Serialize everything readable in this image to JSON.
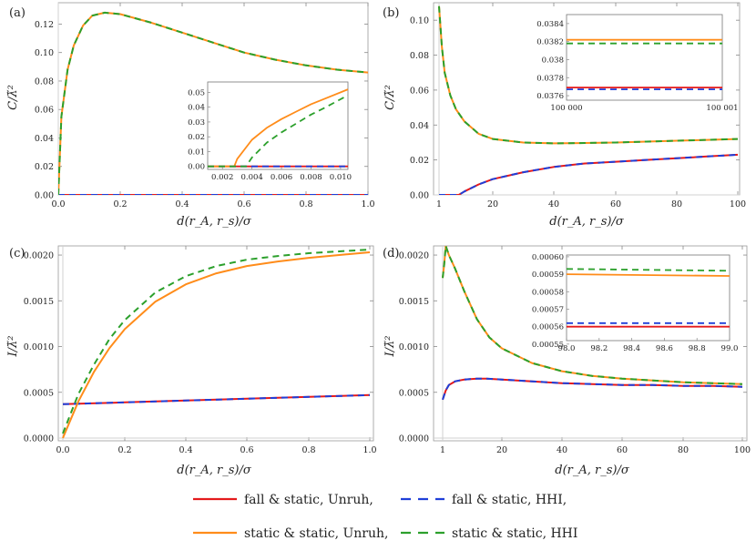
{
  "chart_data": [
    {
      "panel": "(a)",
      "type": "line",
      "xlabel": "d(r_A, r_s)/σ",
      "ylabel": "C/λ̃²",
      "xlim": [
        0,
        1.0
      ],
      "ylim": [
        0,
        0.135
      ],
      "xticks": [
        "0.0",
        "0.2",
        "0.4",
        "0.6",
        "0.8",
        "1.0"
      ],
      "yticks": [
        "0.00",
        "0.02",
        "0.04",
        "0.06",
        "0.08",
        "0.10",
        "0.12"
      ],
      "series": [
        {
          "name": "fall & static, Unruh",
          "color": "#e41a1c",
          "dash": false,
          "x": [
            0,
            0.2,
            0.4,
            0.6,
            0.8,
            1.0
          ],
          "values": [
            0,
            0,
            0,
            0,
            0,
            0
          ]
        },
        {
          "name": "fall & static, HHI",
          "color": "#1f3fd8",
          "dash": true,
          "x": [
            0,
            0.2,
            0.4,
            0.6,
            0.8,
            1.0
          ],
          "values": [
            0,
            0,
            0,
            0,
            0,
            0
          ]
        },
        {
          "name": "static & static, Unruh",
          "color": "#ff8c1a",
          "dash": false,
          "x": [
            0,
            0.01,
            0.03,
            0.05,
            0.08,
            0.11,
            0.15,
            0.2,
            0.3,
            0.4,
            0.5,
            0.6,
            0.7,
            0.8,
            0.9,
            1.0
          ],
          "values": [
            0,
            0.055,
            0.088,
            0.105,
            0.119,
            0.126,
            0.128,
            0.127,
            0.121,
            0.114,
            0.107,
            0.1,
            0.095,
            0.091,
            0.088,
            0.086
          ]
        },
        {
          "name": "static & static, HHI",
          "color": "#2ca02c",
          "dash": true,
          "x": [
            0,
            0.01,
            0.03,
            0.05,
            0.08,
            0.11,
            0.15,
            0.2,
            0.3,
            0.4,
            0.5,
            0.6,
            0.7,
            0.8,
            0.9,
            1.0
          ],
          "values": [
            0,
            0.055,
            0.088,
            0.105,
            0.119,
            0.126,
            0.128,
            0.127,
            0.121,
            0.114,
            0.107,
            0.1,
            0.095,
            0.091,
            0.088,
            0.086
          ]
        }
      ],
      "inset": {
        "xlim": [
          0.001,
          0.0105
        ],
        "ylim": [
          -0.002,
          0.057
        ],
        "xticks": [
          "0.002",
          "0.004",
          "0.006",
          "0.008",
          "0.010"
        ],
        "yticks": [
          "0.00",
          "0.01",
          "0.02",
          "0.03",
          "0.04",
          "0.05"
        ],
        "series": [
          {
            "name": "fall & static, Unruh",
            "x": [
              0.001,
              0.0105
            ],
            "values": [
              0,
              0
            ]
          },
          {
            "name": "fall & static, HHI",
            "x": [
              0.001,
              0.0105
            ],
            "values": [
              0,
              0
            ]
          },
          {
            "name": "static & static, Unruh",
            "x": [
              0.001,
              0.0028,
              0.0028,
              0.003,
              0.004,
              0.005,
              0.006,
              0.007,
              0.008,
              0.009,
              0.0105
            ],
            "values": [
              0,
              0,
              0,
              0.005,
              0.018,
              0.026,
              0.032,
              0.037,
              0.042,
              0.046,
              0.052
            ]
          },
          {
            "name": "static & static, HHI",
            "x": [
              0.001,
              0.0036,
              0.0036,
              0.004,
              0.005,
              0.006,
              0.007,
              0.008,
              0.009,
              0.0105
            ],
            "values": [
              0,
              0,
              0,
              0.006,
              0.016,
              0.023,
              0.029,
              0.035,
              0.04,
              0.048
            ]
          }
        ]
      }
    },
    {
      "panel": "(b)",
      "type": "line",
      "xlabel": "d(r_A, r_s)/σ",
      "ylabel": "C/λ̃²",
      "xlim": [
        0,
        100
      ],
      "ylim": [
        0,
        0.11
      ],
      "xticks": [
        "1",
        "20",
        "40",
        "60",
        "80",
        "100"
      ],
      "yticks": [
        "0.00",
        "0.02",
        "0.04",
        "0.06",
        "0.08",
        "0.10"
      ],
      "series": [
        {
          "name": "fall & static, Unruh",
          "color": "#e41a1c",
          "dash": false,
          "x": [
            1,
            5,
            8,
            10,
            15,
            20,
            30,
            40,
            50,
            60,
            70,
            80,
            90,
            100
          ],
          "values": [
            0,
            0,
            0,
            0.002,
            0.006,
            0.009,
            0.013,
            0.016,
            0.018,
            0.019,
            0.02,
            0.021,
            0.022,
            0.023
          ]
        },
        {
          "name": "fall & static, HHI",
          "color": "#1f3fd8",
          "dash": true,
          "x": [
            1,
            5,
            8,
            10,
            15,
            20,
            30,
            40,
            50,
            60,
            70,
            80,
            90,
            100
          ],
          "values": [
            0,
            0,
            0,
            0.002,
            0.006,
            0.009,
            0.013,
            0.016,
            0.018,
            0.019,
            0.02,
            0.021,
            0.022,
            0.023
          ]
        },
        {
          "name": "static & static, Unruh",
          "color": "#ff8c1a",
          "dash": false,
          "x": [
            1,
            2,
            3,
            5,
            7,
            10,
            15,
            20,
            30,
            40,
            50,
            60,
            70,
            80,
            90,
            100
          ],
          "values": [
            0.108,
            0.085,
            0.07,
            0.057,
            0.049,
            0.042,
            0.035,
            0.032,
            0.03,
            0.0295,
            0.0297,
            0.03,
            0.0305,
            0.031,
            0.0315,
            0.032
          ]
        },
        {
          "name": "static & static, HHI",
          "color": "#2ca02c",
          "dash": true,
          "x": [
            1,
            2,
            3,
            5,
            7,
            10,
            15,
            20,
            30,
            40,
            50,
            60,
            70,
            80,
            90,
            100
          ],
          "values": [
            0.108,
            0.085,
            0.07,
            0.057,
            0.049,
            0.042,
            0.035,
            0.032,
            0.03,
            0.0295,
            0.0297,
            0.03,
            0.0305,
            0.031,
            0.0315,
            0.032
          ]
        }
      ],
      "inset": {
        "xlim": [
          100000,
          100001
        ],
        "ylim": [
          0.03755,
          0.0385
        ],
        "xticks": [
          "100 000",
          "100 001"
        ],
        "yticks": [
          "0.0376",
          "0.0378",
          "0.038",
          "0.0382",
          "0.0384"
        ],
        "series": [
          {
            "name": "fall & static, Unruh",
            "x": [
              100000,
              100001
            ],
            "values": [
              0.03769,
              0.03769
            ]
          },
          {
            "name": "fall & static, HHI",
            "x": [
              100000,
              100001
            ],
            "values": [
              0.03767,
              0.03767
            ]
          },
          {
            "name": "static & static, Unruh",
            "x": [
              100000,
              100001
            ],
            "values": [
              0.03822,
              0.03822
            ]
          },
          {
            "name": "static & static, HHI",
            "x": [
              100000,
              100001
            ],
            "values": [
              0.03818,
              0.03818
            ]
          }
        ]
      }
    },
    {
      "panel": "(c)",
      "type": "line",
      "xlabel": "d(r_A, r_s)/σ",
      "ylabel": "I/λ̃²",
      "xlim": [
        0,
        1.0
      ],
      "ylim": [
        -3e-05,
        0.0021
      ],
      "xticks": [
        "0.0",
        "0.2",
        "0.4",
        "0.6",
        "0.8",
        "1.0"
      ],
      "yticks": [
        "0.0000",
        "0.0005",
        "0.0010",
        "0.0015",
        "0.0020"
      ],
      "series": [
        {
          "name": "fall & static, Unruh",
          "color": "#e41a1c",
          "dash": false,
          "x": [
            0,
            0.2,
            0.4,
            0.6,
            0.8,
            1.0
          ],
          "values": [
            0.00037,
            0.00039,
            0.00041,
            0.00043,
            0.00045,
            0.00047
          ]
        },
        {
          "name": "fall & static, HHI",
          "color": "#1f3fd8",
          "dash": true,
          "x": [
            0,
            0.2,
            0.4,
            0.6,
            0.8,
            1.0
          ],
          "values": [
            0.00037,
            0.00039,
            0.00041,
            0.00043,
            0.00045,
            0.00047
          ]
        },
        {
          "name": "static & static, Unruh",
          "color": "#ff8c1a",
          "dash": false,
          "x": [
            0,
            0.05,
            0.1,
            0.15,
            0.2,
            0.3,
            0.4,
            0.5,
            0.6,
            0.7,
            0.8,
            0.9,
            1.0
          ],
          "values": [
            0,
            0.0004,
            0.00072,
            0.00098,
            0.00119,
            0.00149,
            0.00168,
            0.0018,
            0.00188,
            0.00193,
            0.00197,
            0.002,
            0.00203
          ]
        },
        {
          "name": "static & static, HHI",
          "color": "#2ca02c",
          "dash": true,
          "x": [
            0,
            0.05,
            0.1,
            0.15,
            0.2,
            0.3,
            0.4,
            0.5,
            0.6,
            0.7,
            0.8,
            0.9,
            1.0
          ],
          "values": [
            5e-05,
            0.00048,
            0.0008,
            0.00108,
            0.00129,
            0.00159,
            0.00177,
            0.00188,
            0.00195,
            0.00199,
            0.00202,
            0.00204,
            0.00206
          ]
        }
      ]
    },
    {
      "panel": "(d)",
      "type": "line",
      "xlabel": "d(r_A, r_s)/σ",
      "ylabel": "I/λ̃²",
      "xlim": [
        0,
        100
      ],
      "ylim": [
        -3e-05,
        0.0021
      ],
      "xticks": [
        "1",
        "20",
        "40",
        "60",
        "80",
        "100"
      ],
      "yticks": [
        "0.0000",
        "0.0005",
        "0.0010",
        "0.0015",
        "0.0020"
      ],
      "series": [
        {
          "name": "fall & static, Unruh",
          "color": "#e41a1c",
          "dash": false,
          "x": [
            1,
            2,
            3,
            5,
            8,
            12,
            15,
            20,
            30,
            40,
            50,
            60,
            70,
            80,
            90,
            100
          ],
          "values": [
            0.00042,
            0.00052,
            0.00058,
            0.00062,
            0.00064,
            0.00065,
            0.00065,
            0.00064,
            0.00062,
            0.0006,
            0.00059,
            0.00058,
            0.00058,
            0.00057,
            0.00057,
            0.00056
          ]
        },
        {
          "name": "fall & static, HHI",
          "color": "#1f3fd8",
          "dash": true,
          "x": [
            1,
            2,
            3,
            5,
            8,
            12,
            15,
            20,
            30,
            40,
            50,
            60,
            70,
            80,
            90,
            100
          ],
          "values": [
            0.00042,
            0.00052,
            0.00058,
            0.00062,
            0.00064,
            0.00065,
            0.00065,
            0.00064,
            0.00062,
            0.0006,
            0.00059,
            0.00058,
            0.00058,
            0.00057,
            0.00057,
            0.00056
          ]
        },
        {
          "name": "static & static, Unruh",
          "color": "#ff8c1a",
          "dash": false,
          "x": [
            1,
            1.5,
            2,
            3,
            5,
            8,
            12,
            16,
            20,
            30,
            40,
            50,
            60,
            70,
            80,
            90,
            100
          ],
          "values": [
            0.00175,
            0.0019,
            0.0021,
            0.002,
            0.00185,
            0.0016,
            0.0013,
            0.0011,
            0.00098,
            0.00082,
            0.00073,
            0.00068,
            0.00065,
            0.00063,
            0.00061,
            0.0006,
            0.00059
          ]
        },
        {
          "name": "static & static, HHI",
          "color": "#2ca02c",
          "dash": true,
          "x": [
            1,
            1.5,
            2,
            3,
            5,
            8,
            12,
            16,
            20,
            30,
            40,
            50,
            60,
            70,
            80,
            90,
            100
          ],
          "values": [
            0.00175,
            0.0019,
            0.0021,
            0.002,
            0.00185,
            0.0016,
            0.0013,
            0.0011,
            0.00098,
            0.00082,
            0.00073,
            0.00068,
            0.00065,
            0.00063,
            0.00061,
            0.0006,
            0.00059
          ]
        }
      ],
      "inset": {
        "xlim": [
          98.0,
          99.0
        ],
        "ylim": [
          0.000552,
          0.000601
        ],
        "xticks": [
          "98.0",
          "98.2",
          "98.4",
          "98.6",
          "98.8",
          "99.0"
        ],
        "yticks": [
          "0.00055",
          "0.00056",
          "0.00057",
          "0.00058",
          "0.00059",
          "0.00060"
        ],
        "series": [
          {
            "name": "fall & static, Unruh",
            "x": [
              98.0,
              99.0
            ],
            "values": [
              0.00056,
              0.00056
            ]
          },
          {
            "name": "fall & static, HHI",
            "x": [
              98.0,
              99.0
            ],
            "values": [
              0.000562,
              0.000562
            ]
          },
          {
            "name": "static & static, Unruh",
            "x": [
              98.0,
              99.0
            ],
            "values": [
              0.00059,
              0.000589
            ]
          },
          {
            "name": "static & static, HHI",
            "x": [
              98.0,
              99.0
            ],
            "values": [
              0.000593,
              0.000592
            ]
          }
        ]
      }
    }
  ],
  "legend": [
    {
      "label": "fall & static, Unruh,",
      "color": "#e41a1c",
      "dash": false
    },
    {
      "label": "fall & static, HHI,",
      "color": "#1f3fd8",
      "dash": true
    },
    {
      "label": "static & static, Unruh,",
      "color": "#ff8c1a",
      "dash": false
    },
    {
      "label": "static & static, HHI",
      "color": "#2ca02c",
      "dash": true
    }
  ]
}
